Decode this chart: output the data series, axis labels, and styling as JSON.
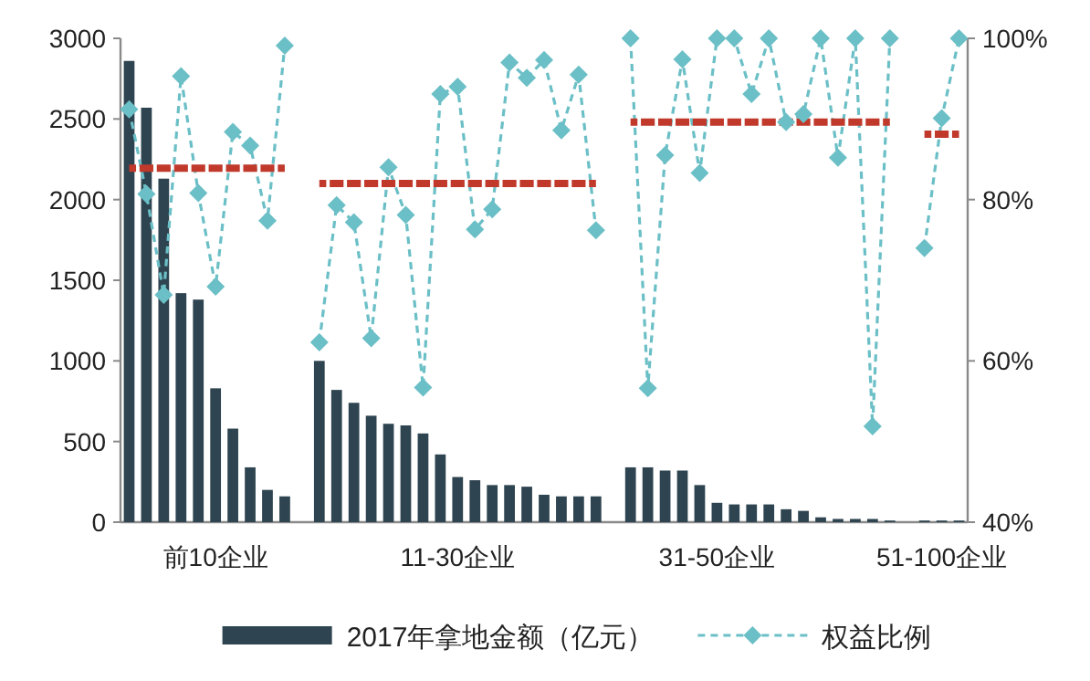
{
  "chart_data": {
    "type": "bar",
    "categories": [
      null,
      null,
      null,
      null,
      null,
      "前10企业",
      null,
      null,
      null,
      null,
      null,
      null,
      null,
      null,
      null,
      null,
      null,
      null,
      null,
      "11-30企业",
      null,
      null,
      null,
      null,
      null,
      null,
      null,
      null,
      null,
      null,
      null,
      null,
      null,
      null,
      "31-50企业",
      null,
      null,
      null,
      null,
      null,
      null,
      null,
      null,
      null,
      null,
      null,
      null,
      "51-100企业",
      null
    ],
    "ylim": [
      0,
      3000
    ],
    "yticks": [
      0,
      500,
      1000,
      1500,
      2000,
      2500,
      3000
    ],
    "y2lim": [
      40,
      100
    ],
    "y2ticks": [
      {
        "value": 40,
        "label": "40%"
      },
      {
        "value": 60,
        "label": "60%"
      },
      {
        "value": 80,
        "label": "80%"
      },
      {
        "value": 100,
        "label": "100%"
      }
    ],
    "legend": "bottom",
    "series": [
      {
        "name": "2017年拿地金额（亿元）",
        "color": "#2e4450",
        "values": [
          2860,
          2570,
          2130,
          1420,
          1380,
          830,
          580,
          340,
          200,
          160,
          null,
          1000,
          820,
          740,
          660,
          610,
          600,
          550,
          420,
          280,
          260,
          230,
          230,
          220,
          170,
          160,
          160,
          160,
          null,
          340,
          340,
          320,
          320,
          230,
          120,
          110,
          110,
          110,
          80,
          70,
          30,
          20,
          20,
          20,
          10,
          null,
          10,
          10,
          10
        ]
      },
      {
        "name": "权益比例",
        "type": "line",
        "axis": "y2",
        "color": "#6bbfc6",
        "marker": "diamond",
        "line_style": "dashed",
        "values": [
          91.2,
          80.7,
          68.2,
          95.3,
          80.8,
          69.2,
          88.4,
          86.7,
          77.4,
          99.1,
          null,
          62.3,
          79.3,
          77.2,
          62.8,
          84.0,
          78.1,
          56.7,
          93.1,
          94.0,
          76.3,
          78.8,
          97.0,
          95.1,
          97.3,
          88.6,
          95.5,
          76.2,
          null,
          100,
          56.6,
          85.5,
          97.4,
          83.3,
          100,
          100,
          93.1,
          100,
          89.6,
          90.6,
          100,
          85.2,
          100,
          51.9,
          100,
          null,
          74.0,
          90.1,
          100
        ]
      },
      {
        "type": "line",
        "axis": "y2",
        "color": "#c0392b",
        "marker": "none",
        "line_style": "dashed",
        "values": [
          83.9,
          83.9,
          83.9,
          83.9,
          83.9,
          83.9,
          83.9,
          83.9,
          83.9,
          83.9,
          null,
          null,
          null,
          null,
          null,
          null,
          null,
          null,
          null,
          null,
          null,
          null,
          null,
          null,
          null,
          null,
          null,
          null,
          null,
          null,
          null,
          null,
          null,
          null,
          null,
          null,
          null,
          null,
          null,
          null,
          null,
          null,
          null,
          null,
          null,
          null,
          null,
          null,
          null
        ]
      },
      {
        "type": "line",
        "axis": "y2",
        "color": "#c0392b",
        "marker": "none",
        "line_style": "dashed",
        "values": [
          null,
          null,
          null,
          null,
          null,
          null,
          null,
          null,
          null,
          null,
          null,
          82.0,
          82.0,
          82.0,
          82.0,
          82.0,
          82.0,
          82.0,
          82.0,
          82.0,
          82.0,
          82.0,
          82.0,
          82.0,
          82.0,
          82.0,
          82.0,
          82.0,
          null,
          null,
          null,
          null,
          null,
          null,
          null,
          null,
          null,
          null,
          null,
          null,
          null,
          null,
          null,
          null,
          null,
          null,
          null,
          null,
          null
        ]
      },
      {
        "type": "line",
        "axis": "y2",
        "color": "#c0392b",
        "marker": "none",
        "line_style": "dashed",
        "values": [
          null,
          null,
          null,
          null,
          null,
          null,
          null,
          null,
          null,
          null,
          null,
          null,
          null,
          null,
          null,
          null,
          null,
          null,
          null,
          null,
          null,
          null,
          null,
          null,
          null,
          null,
          null,
          null,
          null,
          89.6,
          89.6,
          89.6,
          89.6,
          89.6,
          89.6,
          89.6,
          89.6,
          89.6,
          89.6,
          89.6,
          89.6,
          89.6,
          89.6,
          89.6,
          89.6,
          null,
          null,
          null,
          null
        ]
      },
      {
        "type": "line",
        "axis": "y2",
        "color": "#c0392b",
        "marker": "none",
        "line_style": "dashed",
        "values": [
          null,
          null,
          null,
          null,
          null,
          null,
          null,
          null,
          null,
          null,
          null,
          null,
          null,
          null,
          null,
          null,
          null,
          null,
          null,
          null,
          null,
          null,
          null,
          null,
          null,
          null,
          null,
          null,
          null,
          null,
          null,
          null,
          null,
          null,
          null,
          null,
          null,
          null,
          null,
          null,
          null,
          null,
          null,
          null,
          null,
          null,
          88.1,
          88.1,
          88.1
        ]
      }
    ]
  }
}
